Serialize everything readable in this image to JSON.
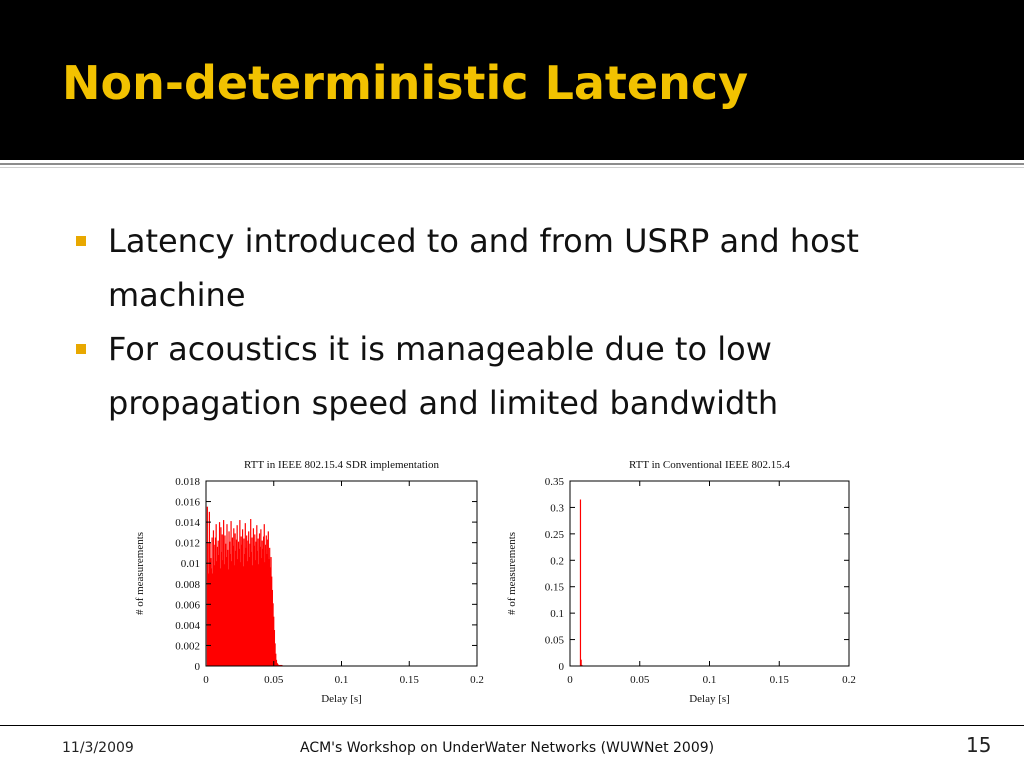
{
  "slide": {
    "title": "Non-deterministic Latency",
    "bullets": [
      "Latency introduced to and from USRP and host machine",
      "For acoustics it is manageable due to low propagation speed and limited bandwidth"
    ],
    "colors": {
      "title": "#f2c200",
      "title_bar": "#000000",
      "bullet_marker": "#e8a800",
      "bars": "#ff0000"
    }
  },
  "chart_data": [
    {
      "type": "bar",
      "title": "RTT in IEEE 802.15.4 SDR implementation",
      "xlabel": "Delay [s]",
      "ylabel": "# of measurements",
      "xlim": [
        0,
        0.2
      ],
      "ylim": [
        0,
        0.018
      ],
      "xticks": [
        "0",
        "0.05",
        "0.1",
        "0.15",
        "0.2"
      ],
      "yticks": [
        "0",
        "0.002",
        "0.004",
        "0.006",
        "0.008",
        "0.01",
        "0.012",
        "0.014",
        "0.016",
        "0.018"
      ],
      "grid": false,
      "bin_width": 0.0005,
      "x": [
        0.001,
        0.0015,
        0.002,
        0.0025,
        0.003,
        0.0035,
        0.004,
        0.0045,
        0.005,
        0.0055,
        0.006,
        0.0065,
        0.007,
        0.0075,
        0.008,
        0.0085,
        0.009,
        0.0095,
        0.01,
        0.0105,
        0.011,
        0.0115,
        0.012,
        0.0125,
        0.013,
        0.0135,
        0.014,
        0.0145,
        0.015,
        0.0155,
        0.016,
        0.0165,
        0.017,
        0.0175,
        0.018,
        0.0185,
        0.019,
        0.0195,
        0.02,
        0.0205,
        0.021,
        0.0215,
        0.022,
        0.0225,
        0.023,
        0.0235,
        0.024,
        0.0245,
        0.025,
        0.0255,
        0.026,
        0.0265,
        0.027,
        0.0275,
        0.028,
        0.0285,
        0.029,
        0.0295,
        0.03,
        0.0305,
        0.031,
        0.0315,
        0.032,
        0.0325,
        0.033,
        0.0335,
        0.034,
        0.0345,
        0.035,
        0.0355,
        0.036,
        0.0365,
        0.037,
        0.0375,
        0.038,
        0.0385,
        0.039,
        0.0395,
        0.04,
        0.0405,
        0.041,
        0.0415,
        0.042,
        0.0425,
        0.043,
        0.0435,
        0.044,
        0.0445,
        0.045,
        0.0455,
        0.046,
        0.0465,
        0.047,
        0.0475,
        0.048,
        0.0485,
        0.049,
        0.0495,
        0.05,
        0.0505,
        0.051,
        0.0515,
        0.052,
        0.0525,
        0.053,
        0.0535,
        0.054,
        0.0545,
        0.055,
        0.0555,
        0.056
      ],
      "values": [
        0.0155,
        0.012,
        0.009,
        0.015,
        0.012,
        0.0105,
        0.0095,
        0.0125,
        0.009,
        0.0132,
        0.0118,
        0.0098,
        0.0125,
        0.0138,
        0.0102,
        0.0116,
        0.0122,
        0.0108,
        0.014,
        0.0095,
        0.0135,
        0.0111,
        0.0128,
        0.0103,
        0.0142,
        0.0099,
        0.0127,
        0.0119,
        0.0106,
        0.0138,
        0.0113,
        0.0094,
        0.0131,
        0.0121,
        0.0109,
        0.0141,
        0.0102,
        0.0125,
        0.0117,
        0.0134,
        0.0098,
        0.0129,
        0.0112,
        0.0123,
        0.0137,
        0.0104,
        0.0121,
        0.0114,
        0.0142,
        0.0101,
        0.0126,
        0.0118,
        0.0133,
        0.0097,
        0.0124,
        0.0109,
        0.0139,
        0.0115,
        0.0127,
        0.0102,
        0.0122,
        0.0131,
        0.0106,
        0.0119,
        0.0143,
        0.0111,
        0.0125,
        0.0098,
        0.0134,
        0.0117,
        0.0128,
        0.0103,
        0.0121,
        0.0137,
        0.0112,
        0.0124,
        0.0099,
        0.0129,
        0.0116,
        0.0133,
        0.0105,
        0.0122,
        0.0114,
        0.0126,
        0.0138,
        0.0101,
        0.0118,
        0.0127,
        0.0109,
        0.0123,
        0.0131,
        0.0104,
        0.0115,
        0.0096,
        0.0106,
        0.0087,
        0.0074,
        0.0061,
        0.0048,
        0.0035,
        0.0022,
        0.0012,
        0.0006,
        0.0003,
        0.0002,
        0.0001,
        0.0001,
        0.0001,
        0.0001,
        0.0001,
        0.0001
      ]
    },
    {
      "type": "bar",
      "title": "RTT in Conventional IEEE 802.15.4",
      "xlabel": "Delay [s]",
      "ylabel": "# of measurements",
      "xlim": [
        0,
        0.2
      ],
      "ylim": [
        0,
        0.35
      ],
      "xticks": [
        "0",
        "0.05",
        "0.1",
        "0.15",
        "0.2"
      ],
      "yticks": [
        "0",
        "0.05",
        "0.1",
        "0.15",
        "0.2",
        "0.25",
        "0.3",
        "0.35"
      ],
      "grid": false,
      "bin_width": 0.0005,
      "x": [
        0.0075,
        0.008,
        0.0085
      ],
      "values": [
        0.315,
        0.012,
        0.002
      ]
    }
  ],
  "footer": {
    "date": "11/3/2009",
    "center": "ACM's Workshop on UnderWater Networks (WUWNet 2009)",
    "page": "15"
  }
}
